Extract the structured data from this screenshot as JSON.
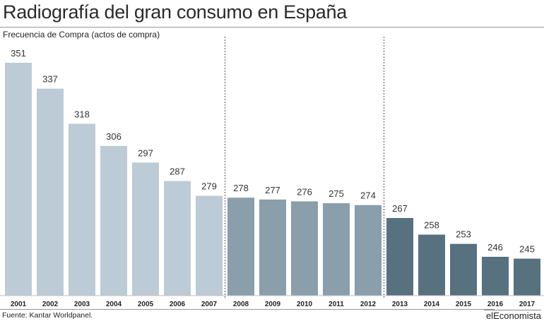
{
  "header": {
    "title": "Radiografía del gran consumo en España",
    "subtitle": "Frecuencia de Compra (actos de compra)"
  },
  "footer": {
    "source": "Fuente: Kantar Worldpanel.",
    "brand": "elEconomista"
  },
  "colors": {
    "period1": "#bccbd5",
    "period2": "#8a9eab",
    "period3": "#58717f",
    "divider": "#555555"
  },
  "chart_data": {
    "type": "bar",
    "title": "Radiografía del gran consumo en España",
    "ylabel": "Frecuencia de Compra (actos de compra)",
    "xlabel": "",
    "categories": [
      "2001",
      "2002",
      "2003",
      "2004",
      "2005",
      "2006",
      "2007",
      "2008",
      "2009",
      "2010",
      "2011",
      "2012",
      "2013",
      "2014",
      "2015",
      "2016",
      "2017"
    ],
    "values": [
      351,
      337,
      318,
      306,
      297,
      287,
      279,
      278,
      277,
      276,
      275,
      274,
      267,
      258,
      253,
      246,
      245
    ],
    "groups": [
      {
        "from": "2001",
        "to": "2007",
        "color": "#bccbd5"
      },
      {
        "from": "2008",
        "to": "2012",
        "color": "#8a9eab"
      },
      {
        "from": "2013",
        "to": "2017",
        "color": "#58717f"
      }
    ],
    "dividers_after": [
      "2007",
      "2012"
    ],
    "ylim": [
      225,
      351
    ],
    "grid": false,
    "data_labels": true
  }
}
